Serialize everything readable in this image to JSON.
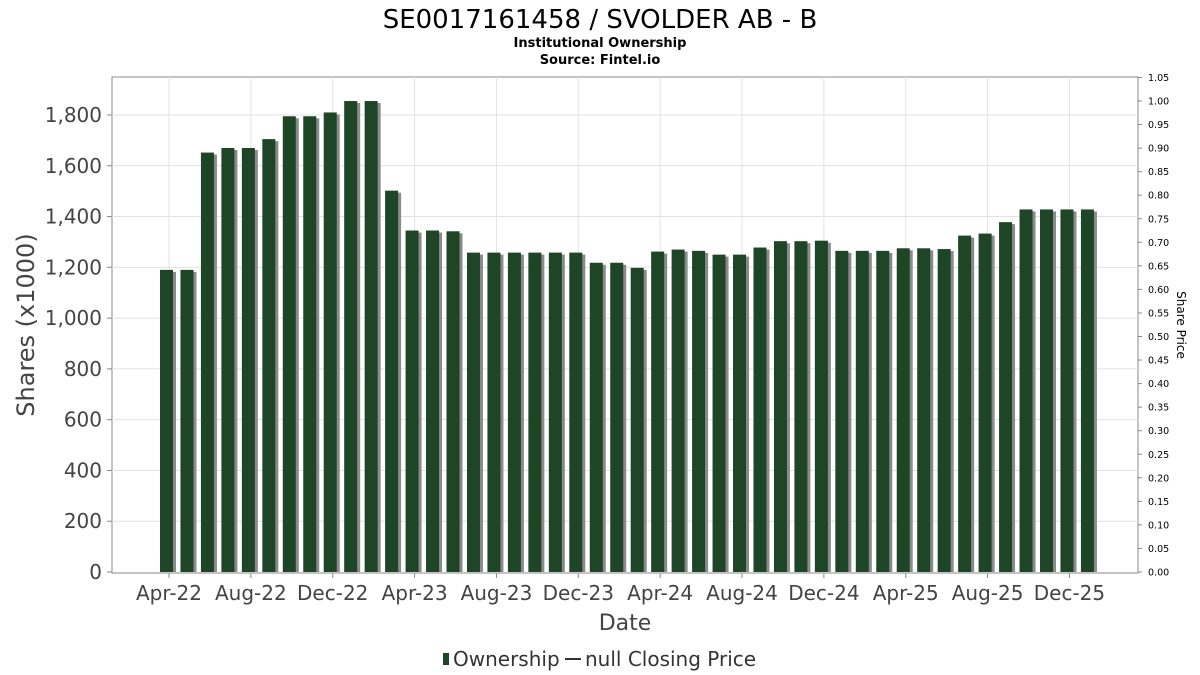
{
  "chart_data": {
    "type": "bar",
    "title": "SE0017161458 / SVOLDER AB - B",
    "subtitle": "Institutional Ownership",
    "source": "Source: Fintel.io",
    "xlabel": "Date",
    "ylabel": "Shares (x1000)",
    "y2label": "Share Price",
    "ylim": [
      0,
      1960
    ],
    "y2lim": [
      0,
      1.05
    ],
    "y_ticks": [
      "0",
      "200",
      "400",
      "600",
      "800",
      "1,000",
      "1,200",
      "1,400",
      "1,600",
      "1,800"
    ],
    "y_tick_values": [
      0,
      200,
      400,
      600,
      800,
      1000,
      1200,
      1400,
      1600,
      1800
    ],
    "y2_ticks": [
      "0.00",
      "0.05",
      "0.10",
      "0.15",
      "0.20",
      "0.25",
      "0.30",
      "0.35",
      "0.40",
      "0.45",
      "0.50",
      "0.55",
      "0.60",
      "0.65",
      "0.70",
      "0.75",
      "0.80",
      "0.85",
      "0.90",
      "0.95",
      "1.00",
      "1.05"
    ],
    "x_ticks": [
      "Apr-22",
      "Aug-22",
      "Dec-22",
      "Apr-23",
      "Aug-23",
      "Dec-23",
      "Apr-24",
      "Aug-24",
      "Dec-24",
      "Apr-25",
      "Aug-25",
      "Dec-25"
    ],
    "grid": true,
    "legend": [
      {
        "label": "Ownership",
        "color": "#1e4526"
      },
      {
        "label": "null Closing Price",
        "color": "#444444"
      }
    ],
    "series": [
      {
        "name": "Ownership",
        "color": "#1e4526",
        "values": [
          1190,
          1190,
          1652,
          1670,
          1670,
          1705,
          1795,
          1795,
          1810,
          1855,
          1855,
          1502,
          1345,
          1345,
          1342,
          1258,
          1258,
          1258,
          1258,
          1258,
          1258,
          1218,
          1218,
          1198,
          1262,
          1270,
          1265,
          1250,
          1250,
          1278,
          1303,
          1303,
          1305,
          1265,
          1265,
          1265,
          1275,
          1275,
          1272,
          1325,
          1333,
          1378,
          1428,
          1428,
          1428,
          1428
        ]
      }
    ]
  }
}
